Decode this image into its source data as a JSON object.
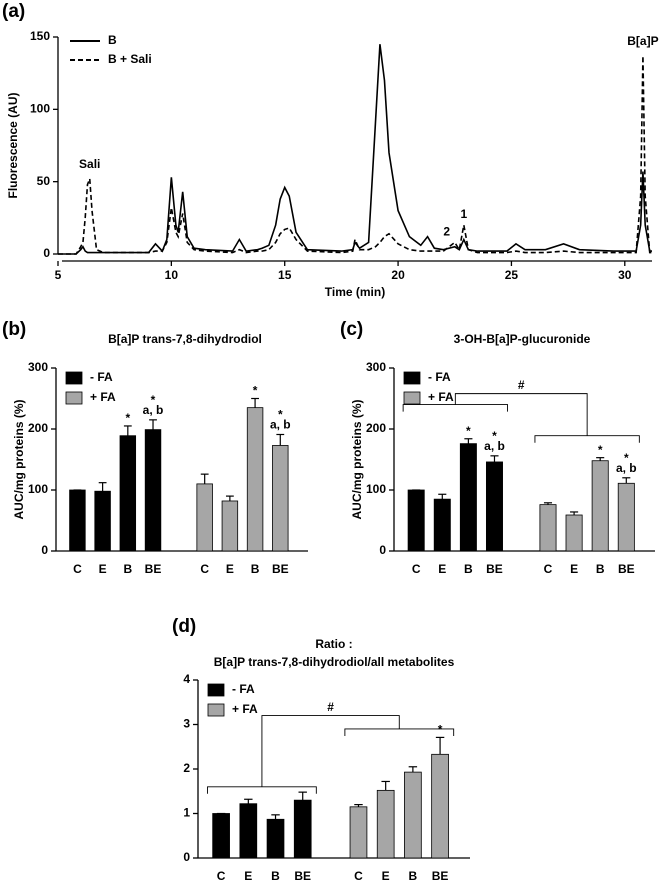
{
  "chart_data": [
    {
      "type": "line",
      "panel_label": "(a)",
      "xlabel": "Time (min)",
      "ylabel": "Fluorescence (AU)",
      "x": [
        5.0,
        5.8,
        6.0,
        6.1,
        6.2,
        6.3,
        6.4,
        6.5,
        6.7,
        7.0,
        9.0,
        9.3,
        9.6,
        9.8,
        10.0,
        10.2,
        10.3,
        10.5,
        10.7,
        11.0,
        11.5,
        12.7,
        13.0,
        13.3,
        13.8,
        14.0,
        14.3,
        14.6,
        14.8,
        15.0,
        15.2,
        15.5,
        16.0,
        17.5,
        18.0,
        18.1,
        18.3,
        18.7,
        19.0,
        19.2,
        19.4,
        19.6,
        20.0,
        20.5,
        21.0,
        21.3,
        21.6,
        22.0,
        22.5,
        22.7,
        22.9,
        23.1,
        23.5,
        24.8,
        25.2,
        25.6,
        26.5,
        27.3,
        28.0,
        29.5,
        30.5,
        30.7,
        30.8,
        30.9,
        31.1,
        31.2
      ],
      "series": [
        {
          "name": "B",
          "color": "#000000",
          "dash": "solid",
          "values": [
            0,
            0,
            3,
            5,
            2,
            1,
            1,
            1,
            1,
            1,
            1,
            7,
            2,
            10,
            53,
            20,
            15,
            43,
            12,
            4,
            3,
            2,
            10,
            2,
            3,
            4,
            6,
            20,
            38,
            46,
            40,
            15,
            3,
            2,
            3,
            8,
            4,
            8,
            90,
            145,
            120,
            70,
            30,
            12,
            6,
            12,
            4,
            3,
            5,
            3,
            10,
            3,
            2,
            2,
            7,
            3,
            3,
            7,
            3,
            2,
            2,
            20,
            57,
            20,
            2,
            2
          ]
        },
        {
          "name": "B + Sali",
          "color": "#000000",
          "dash": "dashed",
          "values": [
            0,
            0,
            5,
            8,
            25,
            48,
            52,
            30,
            3,
            1,
            1,
            2,
            2,
            8,
            32,
            15,
            12,
            28,
            8,
            3,
            2,
            1,
            3,
            1,
            2,
            2,
            3,
            8,
            14,
            17,
            18,
            10,
            2,
            1,
            2,
            10,
            3,
            3,
            5,
            8,
            12,
            14,
            7,
            3,
            2,
            2,
            2,
            2,
            8,
            3,
            20,
            3,
            1,
            1,
            2,
            1,
            1,
            2,
            1,
            1,
            1,
            40,
            137,
            40,
            1,
            1
          ]
        }
      ],
      "xlim": [
        5,
        31.2
      ],
      "ylim": [
        0,
        150
      ],
      "xticks": [
        5,
        10,
        15,
        20,
        25,
        30
      ],
      "yticks": [
        0,
        50,
        100,
        150
      ],
      "annotations": [
        {
          "text": "Sali",
          "x": 6.4,
          "y": 52
        },
        {
          "text": "B[a]P",
          "x": 30.8,
          "y": 137
        },
        {
          "text": "1",
          "x": 22.9,
          "y": 20
        },
        {
          "text": "2",
          "x": 22.5,
          "y": 8
        }
      ],
      "legend": "upper left"
    },
    {
      "type": "bar",
      "panel_label": "(b)",
      "title": "B[a]P trans-7,8-dihydrodiol",
      "ylabel": "AUC/mg proteins (%)",
      "categories": [
        "C",
        "E",
        "B",
        "BE"
      ],
      "series": [
        {
          "name": "- FA",
          "color": "#000000",
          "values": [
            100,
            98,
            189,
            199
          ],
          "errors": [
            0,
            14,
            16,
            16
          ],
          "stars": [
            null,
            null,
            "*",
            "*"
          ],
          "letters": [
            null,
            null,
            null,
            "a, b"
          ]
        },
        {
          "name": "+ FA",
          "color": "#a6a6a6",
          "values": [
            110,
            82,
            235,
            173
          ],
          "errors": [
            16,
            8,
            15,
            18
          ],
          "stars": [
            null,
            null,
            "*",
            "*"
          ],
          "letters": [
            null,
            null,
            null,
            "a, b"
          ]
        }
      ],
      "ylim": [
        0,
        300
      ],
      "yticks": [
        0,
        100,
        200,
        300
      ],
      "legend": "upper left"
    },
    {
      "type": "bar",
      "panel_label": "(c)",
      "title": "3-OH-B[a]P-glucuronide",
      "ylabel": "AUC/mg proteins (%)",
      "categories": [
        "C",
        "E",
        "B",
        "BE"
      ],
      "series": [
        {
          "name": "- FA",
          "color": "#000000",
          "values": [
            100,
            85,
            176,
            146
          ],
          "errors": [
            0,
            8,
            8,
            10
          ],
          "stars": [
            null,
            null,
            "*",
            "*"
          ],
          "letters": [
            null,
            null,
            null,
            "a, b"
          ]
        },
        {
          "name": "+ FA",
          "color": "#a6a6a6",
          "values": [
            76,
            59,
            148,
            111
          ],
          "errors": [
            3,
            5,
            5,
            9
          ],
          "stars": [
            null,
            null,
            "*",
            "*"
          ],
          "letters": [
            null,
            null,
            null,
            "a, b"
          ]
        }
      ],
      "ylim": [
        0,
        300
      ],
      "yticks": [
        0,
        100,
        200,
        300
      ],
      "legend": "upper left",
      "significance": "#"
    },
    {
      "type": "bar",
      "panel_label": "(d)",
      "title": [
        "Ratio :",
        "B[a]P trans-7,8-dihydrodiol/all metabolites"
      ],
      "categories": [
        "C",
        "E",
        "B",
        "BE"
      ],
      "series": [
        {
          "name": "- FA",
          "color": "#000000",
          "values": [
            1.0,
            1.22,
            0.87,
            1.3
          ],
          "errors": [
            0,
            0.1,
            0.1,
            0.18
          ],
          "stars": [
            null,
            null,
            null,
            null
          ],
          "letters": [
            null,
            null,
            null,
            null
          ]
        },
        {
          "name": "+ FA",
          "color": "#a6a6a6",
          "values": [
            1.15,
            1.52,
            1.93,
            2.33
          ],
          "errors": [
            0.05,
            0.2,
            0.12,
            0.38
          ],
          "stars": [
            null,
            null,
            null,
            "*"
          ],
          "letters": [
            null,
            null,
            null,
            null
          ]
        }
      ],
      "ylim": [
        0,
        4
      ],
      "yticks": [
        0,
        1,
        2,
        3,
        4
      ],
      "legend": "upper left",
      "significance": "#"
    }
  ]
}
